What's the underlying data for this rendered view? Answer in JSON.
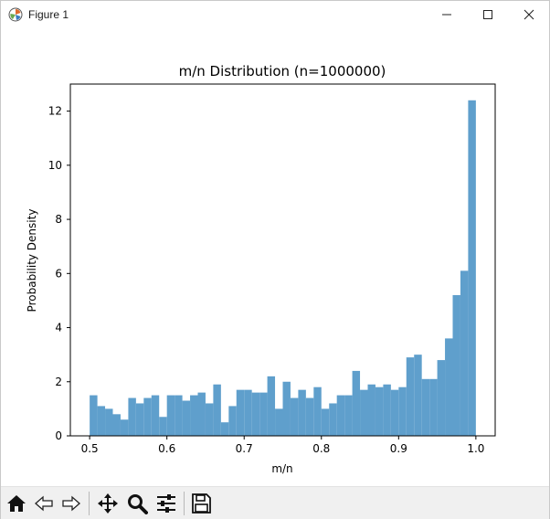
{
  "window": {
    "title": "Figure 1"
  },
  "toolbar": {
    "icons": [
      "home-icon",
      "back-arrow-icon",
      "forward-arrow-icon",
      "pan-icon",
      "zoom-icon",
      "configure-subplots-icon",
      "save-icon"
    ]
  },
  "colors": {
    "bar_fill": "#5f9fcc",
    "axes": "#000000",
    "toolbar_bg": "#f0f0f0"
  },
  "chart_data": {
    "type": "bar",
    "title": "m/n Distribution (n=1000000)",
    "xlabel": "m/n",
    "ylabel": "Probability Density",
    "xlim": [
      0.475,
      1.025
    ],
    "ylim": [
      0,
      13.0
    ],
    "xticks": [
      "0.5",
      "0.6",
      "0.7",
      "0.8",
      "0.9",
      "1.0"
    ],
    "yticks": [
      "0",
      "2",
      "4",
      "6",
      "8",
      "10",
      "12"
    ],
    "grid": false,
    "legend": "none",
    "bin_start": 0.5,
    "bin_width": 0.01,
    "values": [
      1.5,
      1.1,
      1.0,
      0.8,
      0.6,
      1.4,
      1.2,
      1.4,
      1.5,
      0.7,
      1.5,
      1.5,
      1.3,
      1.5,
      1.6,
      1.2,
      1.9,
      0.5,
      1.1,
      1.7,
      1.7,
      1.6,
      1.6,
      2.2,
      1.0,
      2.0,
      1.4,
      1.7,
      1.4,
      1.8,
      1.0,
      1.2,
      1.5,
      1.5,
      2.4,
      1.7,
      1.9,
      1.8,
      1.9,
      1.7,
      1.8,
      2.9,
      3.0,
      2.1,
      2.1,
      2.8,
      3.6,
      5.2,
      6.1,
      12.4
    ]
  }
}
